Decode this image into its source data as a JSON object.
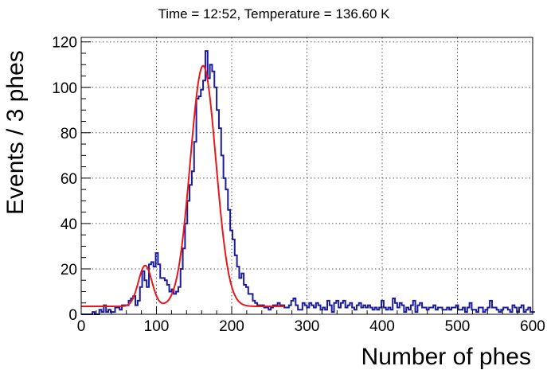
{
  "chart_data": {
    "type": "line",
    "title": "Time = 12:52, Temperature = 136.60 K",
    "xlabel": "Number of phes",
    "ylabel": "Events / 3 phes",
    "xlim": [
      0,
      600
    ],
    "ylim": [
      0,
      122
    ],
    "xticks": [
      0,
      100,
      200,
      300,
      400,
      500,
      600
    ],
    "yticks": [
      0,
      20,
      40,
      60,
      80,
      100,
      120
    ],
    "grid": true,
    "series": [
      {
        "kind": "histogram",
        "color": "#1a1a9c",
        "bin_width": 3,
        "x_start": 0,
        "values": [
          0,
          0,
          0,
          0,
          0,
          1,
          0,
          0,
          2,
          1,
          4,
          1,
          2,
          1,
          1,
          3,
          3,
          2,
          4,
          4,
          4,
          6,
          7,
          8,
          4,
          6,
          12,
          19,
          15,
          12,
          22,
          23,
          21,
          27,
          22,
          16,
          16,
          15,
          13,
          10,
          11,
          9,
          10,
          12,
          20,
          29,
          40,
          50,
          57,
          63,
          76,
          95,
          96,
          99,
          103,
          116,
          104,
          110,
          107,
          100,
          90,
          82,
          70,
          60,
          55,
          46,
          37,
          33,
          26,
          21,
          16,
          18,
          13,
          12,
          9,
          9,
          6,
          5,
          4,
          4,
          4,
          3,
          3,
          2,
          3,
          4,
          4,
          5,
          4,
          4,
          3,
          3,
          4,
          6,
          7,
          4,
          2,
          2,
          5,
          4,
          3,
          5,
          4,
          3,
          5,
          4,
          2,
          3,
          2,
          6,
          4,
          1,
          5,
          6,
          3,
          5,
          6,
          3,
          4,
          5,
          3,
          2,
          4,
          5,
          3,
          4,
          3,
          4,
          3,
          2,
          3,
          2,
          3,
          6,
          3,
          2,
          3,
          2,
          7,
          5,
          3,
          5,
          4,
          1,
          3,
          2,
          4,
          6,
          1,
          4,
          5,
          3,
          3,
          2,
          3,
          3,
          4,
          2,
          3,
          3,
          2,
          2,
          3,
          2,
          3,
          3,
          4,
          2,
          2,
          3,
          1,
          3,
          5,
          2,
          2,
          1,
          3,
          3,
          1,
          2,
          3,
          6,
          3,
          3,
          2,
          1,
          2,
          3,
          3,
          2,
          1,
          4,
          3,
          1,
          3,
          4,
          1,
          2,
          3,
          1,
          1
        ]
      },
      {
        "kind": "fit",
        "color": "#e8171b",
        "x_range": [
          0,
          270
        ],
        "components": [
          {
            "type": "constant",
            "value": 3.5
          },
          {
            "type": "gauss",
            "amp": 18,
            "mean": 85,
            "sigma": 9
          },
          {
            "type": "gauss",
            "amp": 106,
            "mean": 162,
            "sigma": 17
          }
        ]
      }
    ]
  }
}
